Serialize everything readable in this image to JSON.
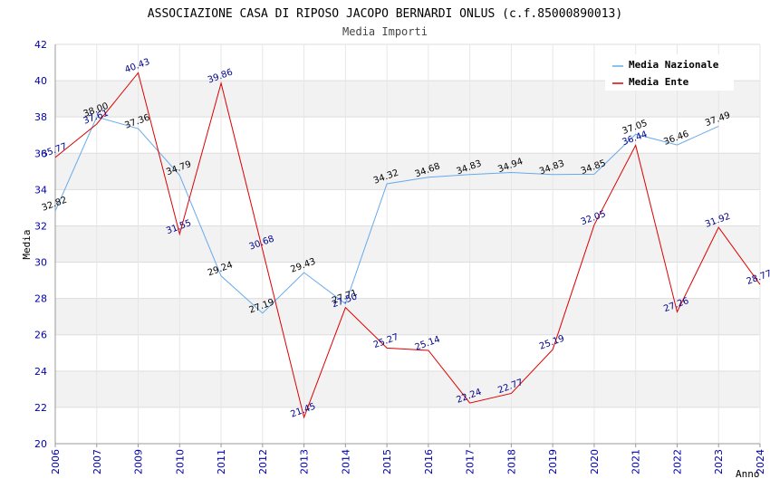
{
  "chart_data": {
    "type": "line",
    "title": "ASSOCIAZIONE CASA DI RIPOSO JACOPO BERNARDI ONLUS (c.f.85000890013)",
    "subtitle": "Media Importi",
    "xlabel": "Anno",
    "ylabel": "Media",
    "ylim": [
      20,
      42
    ],
    "yticks": [
      "20",
      "22",
      "24",
      "26",
      "28",
      "30",
      "32",
      "34",
      "36",
      "38",
      "40",
      "42"
    ],
    "categories": [
      "2006",
      "2007",
      "2009",
      "2010",
      "2011",
      "2012",
      "2013",
      "2014",
      "2015",
      "2016",
      "2017",
      "2018",
      "2019",
      "2020",
      "2021",
      "2022",
      "2023",
      "2024"
    ],
    "series": [
      {
        "name": "Media Nazionale",
        "color": "#66aaee",
        "values": [
          32.82,
          38.0,
          37.36,
          34.79,
          29.24,
          27.19,
          29.43,
          27.71,
          34.32,
          34.68,
          34.83,
          34.94,
          34.83,
          34.85,
          37.05,
          36.46,
          37.49,
          null
        ],
        "labels": [
          "32.82",
          "38.00",
          "37.36",
          "34.79",
          "29.24",
          "27.19",
          "29.43",
          "27.71",
          "34.32",
          "34.68",
          "34.83",
          "34.94",
          "34.83",
          "34.85",
          "37.05",
          "36.46",
          "37.49",
          ""
        ]
      },
      {
        "name": "Media Ente",
        "color": "#dd0000",
        "values": [
          35.77,
          37.61,
          40.43,
          31.55,
          39.86,
          30.68,
          21.45,
          27.5,
          25.27,
          25.14,
          22.24,
          22.77,
          25.19,
          32.05,
          36.44,
          27.26,
          31.92,
          28.77
        ],
        "labels": [
          "35.77",
          "37.61",
          "40.43",
          "31.55",
          "39.86",
          "30.68",
          "21.45",
          "27.50",
          "25.27",
          "25.14",
          "22.24",
          "22.77",
          "25.19",
          "32.05",
          "36.44",
          "27.26",
          "31.92",
          "28.77"
        ]
      }
    ],
    "legend_position": "top-right",
    "grid": true
  }
}
